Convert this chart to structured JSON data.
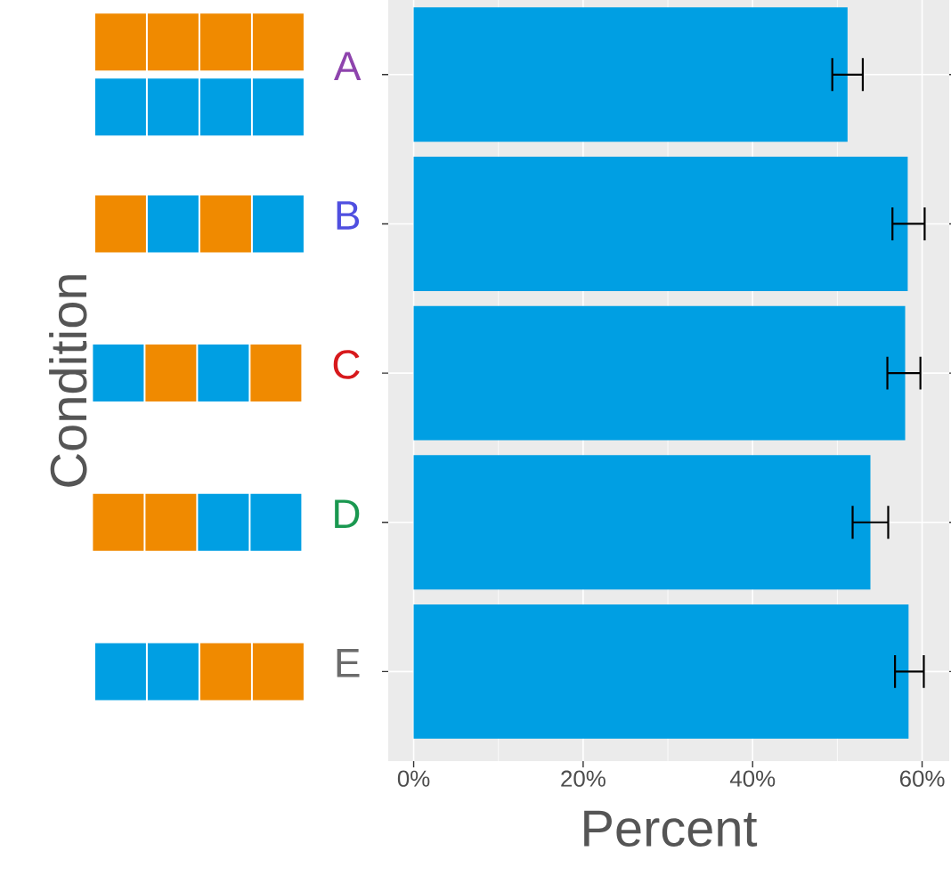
{
  "chart_data": {
    "type": "bar",
    "orientation": "horizontal",
    "xlabel": "Percent",
    "ylabel": "Condition",
    "categories": [
      "A",
      "B",
      "C",
      "D",
      "E"
    ],
    "values": [
      51.2,
      58.3,
      58.0,
      53.9,
      58.4
    ],
    "errors": [
      [
        49.4,
        53.0
      ],
      [
        56.5,
        60.3
      ],
      [
        55.9,
        59.8
      ],
      [
        51.8,
        56.0
      ],
      [
        56.8,
        60.2
      ]
    ],
    "color": "#009fe3",
    "xlim": [
      -3,
      63.2
    ],
    "xticks": [
      {
        "value": 0,
        "label": "0%"
      },
      {
        "value": 20,
        "label": "20%"
      },
      {
        "value": 40,
        "label": "40%"
      },
      {
        "value": 60,
        "label": "60%"
      }
    ],
    "grid": true
  }
}
